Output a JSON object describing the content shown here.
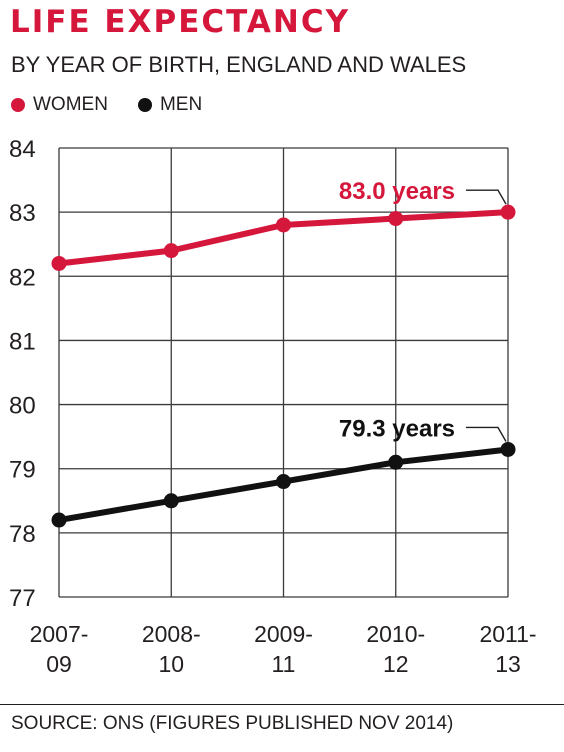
{
  "title": "LIFE EXPECTANCY",
  "subtitle": "BY YEAR OF BIRTH, ENGLAND AND WALES",
  "source": "SOURCE: ONS (FIGURES PUBLISHED NOV 2014)",
  "colors": {
    "women": "#d6173c",
    "men": "#111111",
    "grid": "#3a3a3a"
  },
  "chart_data": {
    "type": "line",
    "title": "LIFE EXPECTANCY",
    "subtitle": "BY YEAR OF BIRTH, ENGLAND AND WALES",
    "categories": [
      [
        "2007-",
        "09"
      ],
      [
        "2008-",
        "10"
      ],
      [
        "2009-",
        "11"
      ],
      [
        "2010-",
        "12"
      ],
      [
        "2011-",
        "13"
      ]
    ],
    "ylim": [
      77,
      84
    ],
    "yticks": [
      77,
      78,
      79,
      80,
      81,
      82,
      83,
      84
    ],
    "grid": true,
    "legend_position": "top-left",
    "series": [
      {
        "name": "WOMEN",
        "key": "women",
        "values": [
          82.2,
          82.4,
          82.8,
          82.9,
          83.0
        ],
        "annotation": "83.0 years"
      },
      {
        "name": "MEN",
        "key": "men",
        "values": [
          78.2,
          78.5,
          78.8,
          79.1,
          79.3
        ],
        "annotation": "79.3 years"
      }
    ]
  }
}
